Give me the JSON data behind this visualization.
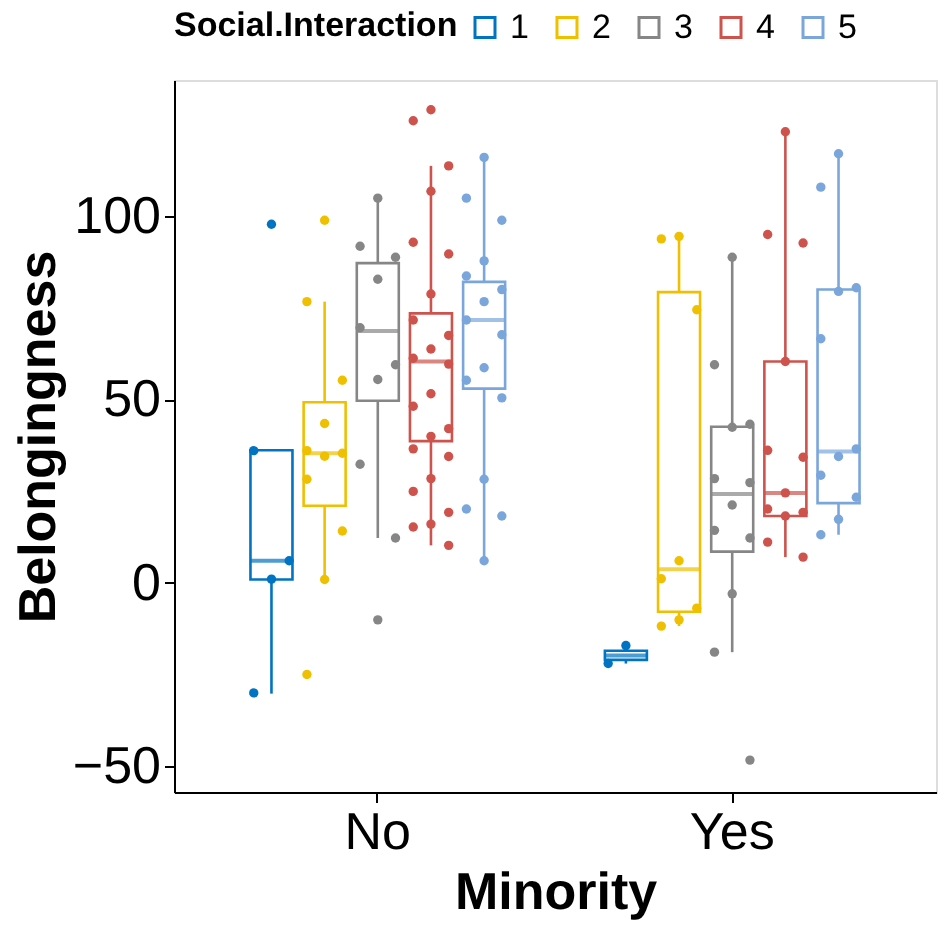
{
  "chart_data": {
    "type": "box",
    "xlabel": "Minority",
    "ylabel": "Belongingness",
    "legend_title": "Social.Interaction",
    "legend": "top",
    "grid": false,
    "marker": "circle",
    "categories": [
      "No",
      "Yes"
    ],
    "ylim": [
      -57,
      137
    ],
    "yticks": [
      -50,
      0,
      50,
      100
    ],
    "series": [
      {
        "name": "1",
        "color": "#0073c2",
        "boxes": [
          {
            "low": -30.2,
            "q1": 0.9,
            "median": 6.0,
            "q3": 36.1,
            "high": 36.1
          },
          {
            "low": -22.0,
            "q1": -21.0,
            "median": -19.8,
            "q3": -18.5,
            "high": -17.1
          }
        ]
      },
      {
        "name": "2",
        "color": "#efc000",
        "boxes": [
          {
            "low": 0.9,
            "q1": 21.0,
            "median": 35.3,
            "q3": 49.2,
            "high": 76.6
          },
          {
            "low": -11.8,
            "q1": -7.9,
            "median": 3.7,
            "q3": 79.2,
            "high": 94.5
          }
        ]
      },
      {
        "name": "3",
        "color": "#868686",
        "boxes": [
          {
            "low": 12.2,
            "q1": 49.6,
            "median": 68.6,
            "q3": 87.1,
            "high": 104.8
          },
          {
            "low": -18.9,
            "q1": 8.5,
            "median": 24.2,
            "q3": 42.5,
            "high": 88.7
          }
        ]
      },
      {
        "name": "4",
        "color": "#cd534c",
        "boxes": [
          {
            "low": 10.2,
            "q1": 38.6,
            "median": 60.3,
            "q3": 73.4,
            "high": 113.6
          },
          {
            "low": 7.0,
            "q1": 18.2,
            "median": 24.5,
            "q3": 60.3,
            "high": 122.9
          }
        ]
      },
      {
        "name": "5",
        "color": "#7aa6dc",
        "boxes": [
          {
            "low": 6.0,
            "q1": 52.9,
            "median": 71.6,
            "q3": 82.0,
            "high": 115.9
          },
          {
            "low": 13.1,
            "q1": 21.7,
            "median": 35.8,
            "q3": 79.9,
            "high": 116.9
          }
        ]
      },
      {
        "type": "scatter",
        "color": "#0073c2",
        "x": [
          "No",
          "No",
          "No",
          "No",
          "No",
          "Yes",
          "Yes"
        ],
        "values": [
          97.7,
          36,
          6,
          1,
          -30,
          -17.1,
          -22.0
        ]
      },
      {
        "type": "scatter",
        "color": "#efc000",
        "x": [
          "No",
          "No",
          "No",
          "No",
          "No",
          "No",
          "No",
          "No",
          "No",
          "No",
          "No",
          "Yes",
          "Yes",
          "Yes",
          "Yes",
          "Yes",
          "Yes",
          "Yes",
          "Yes"
        ],
        "values": [
          98.8,
          76.6,
          55.2,
          43.4,
          36,
          35.3,
          34.5,
          28.2,
          14.1,
          0.9,
          -25.0,
          94.4,
          93.7,
          74.4,
          6.0,
          1.1,
          -6.9,
          -10.1,
          -11.8
        ]
      },
      {
        "type": "scatter",
        "color": "#868686",
        "x": [
          "No",
          "No",
          "No",
          "No",
          "No",
          "No",
          "No",
          "No",
          "No",
          "No",
          "Yes",
          "Yes",
          "Yes",
          "Yes",
          "Yes",
          "Yes",
          "Yes",
          "Yes",
          "Yes",
          "Yes",
          "Yes",
          "Yes"
        ],
        "values": [
          104.8,
          91.7,
          88.7,
          82.7,
          69.5,
          59.4,
          55.4,
          32.3,
          12.2,
          -10.1,
          88.7,
          59.4,
          43.2,
          42.4,
          28.4,
          27.3,
          21.2,
          14.3,
          12.2,
          -3.0,
          -18.9,
          -48.3
        ]
      },
      {
        "type": "scatter",
        "color": "#cd534c",
        "x": [
          "No",
          "No",
          "No",
          "No",
          "No",
          "No",
          "No",
          "No",
          "No",
          "No",
          "No",
          "No",
          "No",
          "No",
          "No",
          "No",
          "No",
          "No",
          "No",
          "No",
          "No",
          "No",
          "No",
          "No",
          "Yes",
          "Yes",
          "Yes",
          "Yes",
          "Yes",
          "Yes",
          "Yes",
          "Yes",
          "Yes",
          "Yes",
          "Yes",
          "Yes"
        ],
        "values": [
          128.9,
          125.9,
          113.6,
          106.7,
          92.8,
          89.6,
          78.7,
          71.6,
          67.4,
          63.7,
          61.2,
          59.6,
          51.5,
          48.1,
          42.0,
          39.9,
          36.5,
          34.4,
          28.4,
          24.9,
          19.2,
          16.0,
          15.2,
          10.2,
          122.9,
          94.9,
          92.6,
          60.3,
          36.1,
          34.2,
          24.5,
          20.1,
          19.2,
          18.2,
          11.1,
          7.0
        ]
      },
      {
        "type": "scatter",
        "color": "#7aa6dc",
        "x": [
          "No",
          "No",
          "No",
          "No",
          "No",
          "No",
          "No",
          "No",
          "No",
          "No",
          "No",
          "No",
          "No",
          "No",
          "No",
          "No",
          "Yes",
          "Yes",
          "Yes",
          "Yes",
          "Yes",
          "Yes",
          "Yes",
          "Yes",
          "Yes",
          "Yes",
          "Yes"
        ],
        "values": [
          115.9,
          104.8,
          98.8,
          87.7,
          83.6,
          79.9,
          76.6,
          71.6,
          67.6,
          58.6,
          55.2,
          50.4,
          28.2,
          20.1,
          18.2,
          6.0,
          116.9,
          107.8,
          80.4,
          79.4,
          66.5,
          36.5,
          34.4,
          29.3,
          23.3,
          17.3,
          13.1
        ]
      }
    ]
  }
}
